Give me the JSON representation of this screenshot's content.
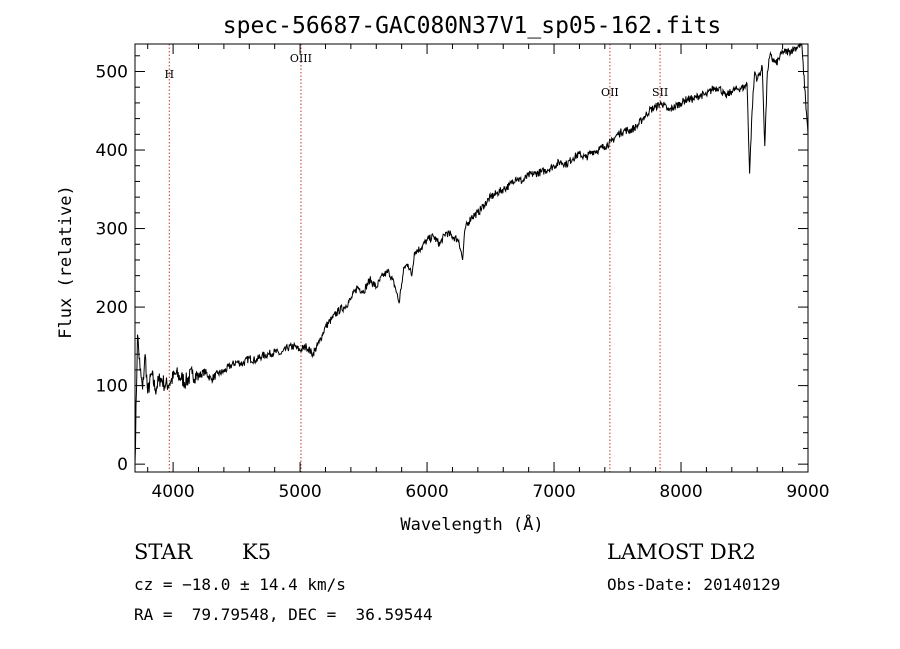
{
  "chart_data": {
    "type": "line",
    "title": "spec-56687-GAC080N37V1_sp05-162.fits",
    "xlabel": "Wavelength (Å)",
    "ylabel": "Flux (relative)",
    "xlim": [
      3700,
      9000
    ],
    "ylim": [
      -10,
      535
    ],
    "xticks": [
      4000,
      5000,
      6000,
      7000,
      8000,
      9000
    ],
    "yticks": [
      0,
      100,
      200,
      300,
      400,
      500
    ],
    "grid": false,
    "series": [
      {
        "x": [
          3700,
          3720,
          3740,
          3760,
          3780,
          3800,
          3830,
          3860,
          3900,
          3940,
          3980,
          4020,
          4060,
          4100,
          4150,
          4200,
          4250,
          4300,
          4350,
          4400,
          4450,
          4500,
          4550,
          4600,
          4650,
          4700,
          4750,
          4800,
          4850,
          4900,
          4950,
          5000,
          5050,
          5100,
          5150,
          5200,
          5250,
          5300,
          5350,
          5400,
          5450,
          5500,
          5550,
          5600,
          5650,
          5700,
          5750,
          5780,
          5800,
          5820,
          5850,
          5880,
          5900,
          5950,
          6000,
          6050,
          6100,
          6150,
          6200,
          6250,
          6280,
          6300,
          6350,
          6400,
          6450,
          6500,
          6550,
          6600,
          6650,
          6700,
          6750,
          6800,
          6850,
          6900,
          6950,
          7000,
          7050,
          7100,
          7150,
          7200,
          7250,
          7300,
          7350,
          7400,
          7450,
          7500,
          7550,
          7600,
          7650,
          7700,
          7750,
          7800,
          7850,
          7900,
          7950,
          8000,
          8050,
          8100,
          8150,
          8200,
          8250,
          8300,
          8350,
          8400,
          8450,
          8500,
          8520,
          8540,
          8560,
          8580,
          8600,
          8640,
          8660,
          8680,
          8700,
          8750,
          8800,
          8850,
          8900,
          8950,
          9000
        ],
        "y": [
          0,
          165,
          120,
          95,
          140,
          90,
          115,
          95,
          110,
          100,
          105,
          115,
          110,
          105,
          115,
          112,
          118,
          108,
          115,
          118,
          125,
          130,
          128,
          135,
          132,
          138,
          140,
          143,
          140,
          148,
          150,
          145,
          150,
          140,
          155,
          175,
          185,
          195,
          200,
          210,
          225,
          220,
          235,
          225,
          240,
          245,
          225,
          205,
          230,
          250,
          255,
          240,
          270,
          275,
          285,
          290,
          280,
          295,
          290,
          285,
          260,
          300,
          315,
          320,
          330,
          340,
          345,
          350,
          355,
          365,
          360,
          368,
          370,
          372,
          375,
          380,
          385,
          382,
          390,
          395,
          390,
          398,
          400,
          405,
          410,
          420,
          425,
          425,
          430,
          440,
          450,
          455,
          460,
          450,
          455,
          460,
          465,
          465,
          470,
          470,
          478,
          480,
          468,
          475,
          478,
          480,
          485,
          370,
          450,
          500,
          490,
          505,
          405,
          500,
          520,
          510,
          525,
          525,
          530,
          535,
          420
        ]
      }
    ],
    "emission_lines": [
      {
        "label": "H",
        "x": 3970
      },
      {
        "label": "OIII",
        "x": 5007
      },
      {
        "label": "OII",
        "x": 7440
      },
      {
        "label": "SII",
        "x": 7835
      }
    ]
  },
  "info": {
    "class": "STAR",
    "subclass": "K5",
    "survey": "LAMOST DR2",
    "cz": "cz = −18.0 ± 14.4 km/s",
    "obs_date": "Obs-Date: 20140129",
    "coords": "RA =  79.79548, DEC =  36.59544"
  }
}
